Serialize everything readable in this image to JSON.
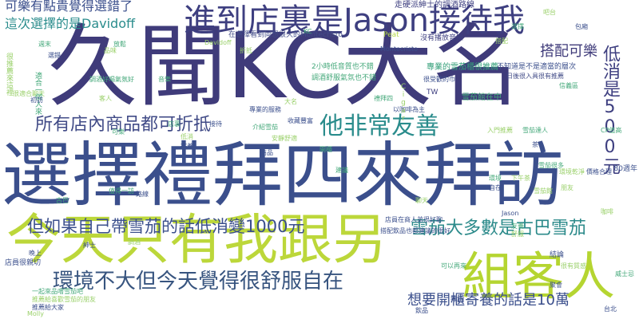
{
  "words": [
    {
      "text": "久聞KC大名",
      "color": "#3f3b7a"
    },
    {
      "text": "選擇禮拜四來拜訪",
      "color": "#3b4f8c"
    },
    {
      "text": "今天只有我跟另",
      "color": "#bcd73a"
    },
    {
      "text": "組客人",
      "color": "#b5d531"
    },
    {
      "text": "進到店裏是Jason接待我",
      "color": "#3e3f80"
    },
    {
      "text": "環境不大但今天覺得很舒服自在",
      "color": "#37547f"
    },
    {
      "text": "但如果自己帶雪茄的話低消變1000元",
      "color": "#3b4f8c"
    },
    {
      "text": "所有店內商品都可折抵",
      "color": "#414b87"
    },
    {
      "text": "他非常友善",
      "color": "#2a8c8c"
    },
    {
      "text": "雪茄大多數是古巴雪茄",
      "color": "#2b8a8a"
    },
    {
      "text": "想要開櫃寄養的話是10萬",
      "color": "#3b4f8c"
    },
    {
      "text": "低消是500元",
      "color": "#3e3f80"
    },
    {
      "text": "搭配可樂",
      "color": "#3f3b7a"
    },
    {
      "text": "可樂有點貴覺得選錯了",
      "color": "#3b4f8c"
    },
    {
      "text": "這次選擇的是Davidoff",
      "color": "#2a8c8c"
    },
    {
      "text": "走硬派紳士的調酒路線",
      "color": "#3e3f80"
    },
    {
      "text": "在選擇看到同想很久的Montecristo",
      "color": "#414b87"
    },
    {
      "text": "沒有播放音樂",
      "color": "#3e3f80"
    },
    {
      "text": "店員在商人弟很好聊",
      "color": "#3b4f8c"
    },
    {
      "text": "搭配飲品也都建議的很好",
      "color": "#3b4f8c"
    },
    {
      "text": "以咖啡為主",
      "color": "#3b4f8c"
    },
    {
      "text": "TW",
      "color": "#3e3f80"
    },
    {
      "text": "Peat",
      "color": "#b6d94a"
    },
    {
      "text": "Molly",
      "color": "#9ad06a"
    },
    {
      "text": "Cigar",
      "color": "#9ad06a"
    },
    {
      "text": "80週年",
      "color": "#3b4f8c"
    },
    {
      "text": "2小時低音質也不錯",
      "color": "#44a87a"
    },
    {
      "text": "調酒舒服氣氛也不錯",
      "color": "#44a87a"
    },
    {
      "text": "不知道是不是適當的層次",
      "color": "#3b4f8c"
    },
    {
      "text": "專業的雪茄櫃很推薦",
      "color": "#35a07a"
    },
    {
      "text": "日後很入具很有推薦",
      "color": "#414b87"
    },
    {
      "text": "很受歡的巾",
      "color": "#3b4f8c"
    },
    {
      "text": "雪茄館在中",
      "color": "#44a87a"
    },
    {
      "text": "很適合聊天",
      "color": "#9ad06a"
    },
    {
      "text": "專業的服務",
      "color": "#3b4f8c"
    },
    {
      "text": "適合一個人來",
      "color": "#44a87a"
    },
    {
      "text": "很推薦來這裡",
      "color": "#9ad06a"
    },
    {
      "text": "店員很親切",
      "color": "#3b4f8c"
    },
    {
      "text": "可以再來",
      "color": "#44a87a"
    },
    {
      "text": "調酒好喝氣氛好",
      "color": "#44a87a"
    },
    {
      "text": "推薦給大家",
      "color": "#3b4f8c"
    },
    {
      "text": "推薦給喜歡雪茄的朋友",
      "color": "#9ad06a"
    },
    {
      "text": "一起來品嚐雪茄吧",
      "color": "#44a87a"
    },
    {
      "text": "結論",
      "color": "#3b4f8c"
    },
    {
      "text": "介紹雪茄",
      "color": "#44a87a"
    },
    {
      "text": "安靜舒適",
      "color": "#9ad06a"
    },
    {
      "text": "初訪",
      "color": "#3b4f8c"
    },
    {
      "text": "值得一訪",
      "color": "#44a87a"
    },
    {
      "text": "很有質感",
      "color": "#9ad06a"
    },
    {
      "text": "收藏豐富",
      "color": "#3b4f8c"
    },
    {
      "text": "雪茄很多",
      "color": "#44a87a"
    },
    {
      "text": "環境乾淨",
      "color": "#9ad06a"
    },
    {
      "text": "價格合理",
      "color": "#3b4f8c"
    },
    {
      "text": "CP值高",
      "color": "#44a87a"
    },
    {
      "text": "吧台",
      "color": "#9ad06a"
    },
    {
      "text": "包廂",
      "color": "#3b4f8c"
    },
    {
      "text": "威士忌",
      "color": "#44a87a"
    },
    {
      "text": "咖啡",
      "color": "#9ad06a"
    },
    {
      "text": "茶",
      "color": "#3b4f8c"
    },
    {
      "text": "雪茄達人",
      "color": "#44a87a"
    },
    {
      "text": "入門推薦",
      "color": "#9ad06a"
    },
    {
      "text": "台北",
      "color": "#3b4f8c"
    },
    {
      "text": "信義區",
      "color": "#44a87a"
    },
    {
      "text": "下午茶",
      "color": "#9ad06a"
    },
    {
      "text": "晚上",
      "color": "#3b4f8c"
    },
    {
      "text": "週末",
      "color": "#44a87a"
    },
    {
      "text": "朋友",
      "color": "#9ad06a"
    },
    {
      "text": "聚會",
      "color": "#3b4f8c"
    },
    {
      "text": "放鬆",
      "color": "#44a87a"
    },
    {
      "text": "品味",
      "color": "#9ad06a"
    },
    {
      "text": "紳士",
      "color": "#3b4f8c"
    },
    {
      "text": "古巴",
      "color": "#44a87a"
    },
    {
      "text": "雪茄館",
      "color": "#9ad06a"
    },
    {
      "text": "Jason",
      "color": "#3b4f8c"
    },
    {
      "text": "KC",
      "color": "#44a87a"
    },
    {
      "text": "Davidoff",
      "color": "#9ad06a"
    },
    {
      "text": "Montecristo",
      "color": "#3b4f8c"
    },
    {
      "text": "可樂",
      "color": "#44a87a"
    },
    {
      "text": "低消",
      "color": "#9ad06a"
    },
    {
      "text": "寄養",
      "color": "#3b4f8c"
    },
    {
      "text": "開櫃",
      "color": "#44a87a"
    },
    {
      "text": "折抵",
      "color": "#9ad06a"
    },
    {
      "text": "商品",
      "color": "#3b4f8c"
    },
    {
      "text": "友善",
      "color": "#44a87a"
    },
    {
      "text": "舒服",
      "color": "#9ad06a"
    },
    {
      "text": "自在",
      "color": "#3b4f8c"
    },
    {
      "text": "環境",
      "color": "#44a87a"
    },
    {
      "text": "客人",
      "color": "#9ad06a"
    },
    {
      "text": "拜訪",
      "color": "#3b4f8c"
    },
    {
      "text": "禮拜四",
      "color": "#44a87a"
    },
    {
      "text": "大名",
      "color": "#9ad06a"
    },
    {
      "text": "接待",
      "color": "#3b4f8c"
    },
    {
      "text": "店裏",
      "color": "#44a87a"
    },
    {
      "text": "搭配",
      "color": "#9ad06a"
    },
    {
      "text": "選錯",
      "color": "#3b4f8c"
    },
    {
      "text": "選擇",
      "color": "#44a87a"
    },
    {
      "text": "調酒",
      "color": "#9ad06a"
    },
    {
      "text": "路線",
      "color": "#3b4f8c"
    },
    {
      "text": "音樂",
      "color": "#44a87a"
    },
    {
      "text": "聊天",
      "color": "#9ad06a"
    },
    {
      "text": "飲品",
      "color": "#3b4f8c"
    },
    {
      "text": "建議",
      "color": "#44a87a"
    }
  ]
}
